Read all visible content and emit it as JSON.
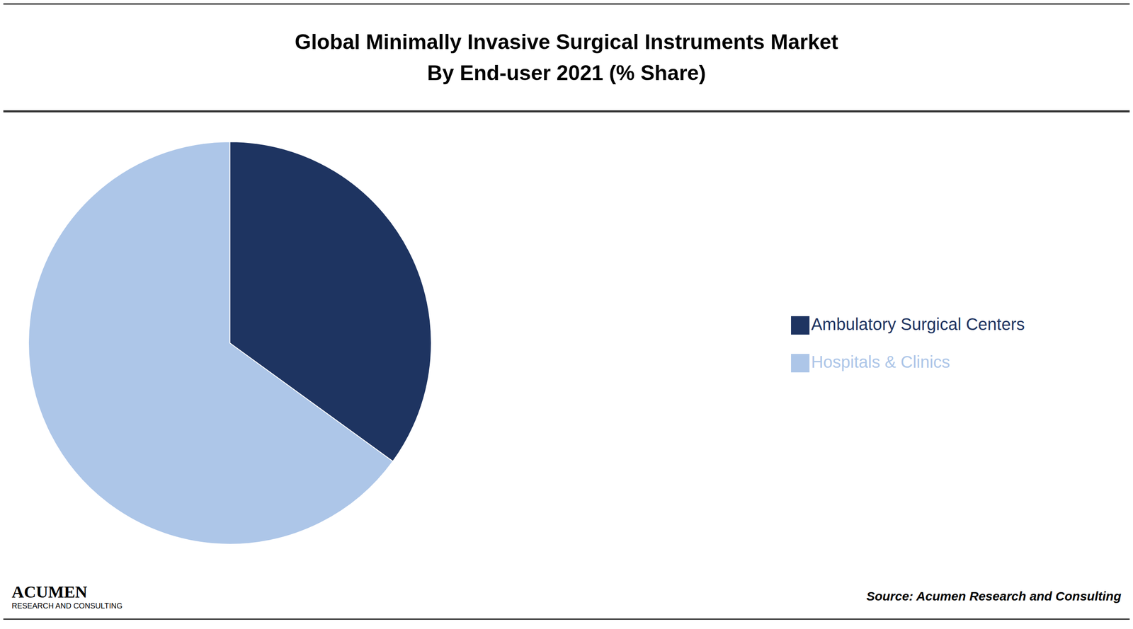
{
  "chart_data": {
    "type": "pie",
    "title": "Global Minimally Invasive Surgical Instruments Market",
    "subtitle": "By End-user 2021 (% Share)",
    "categories": [
      "Hospitals & Clinics",
      "Ambulatory Surgical Centers"
    ],
    "values": [
      65,
      35
    ],
    "colors": [
      "#adc6e8",
      "#1e3461"
    ],
    "legend": "right",
    "annotations": [
      "Source: Acumen Research and Consulting",
      "ACUMEN",
      "RESEARCH AND CONSULTING"
    ]
  }
}
